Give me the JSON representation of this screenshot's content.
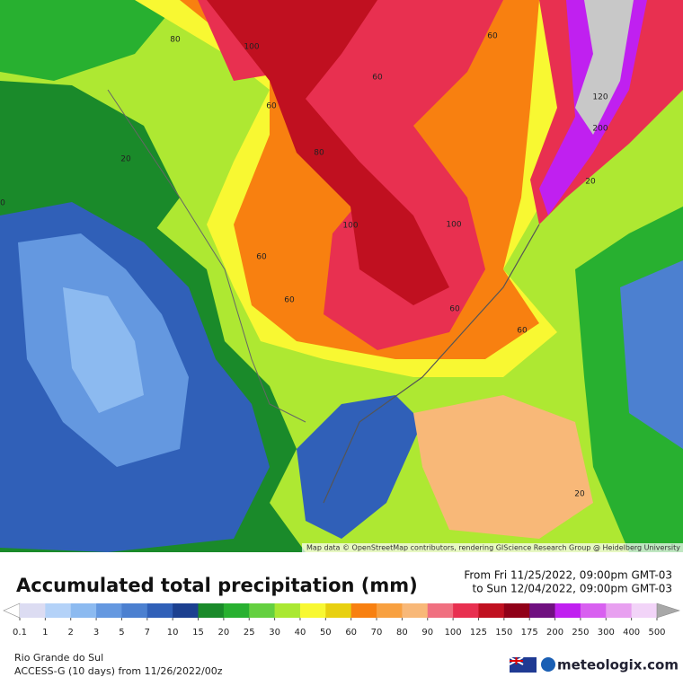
{
  "map": {
    "contour_labels": [
      "80",
      "100",
      "60",
      "80",
      "60",
      "60",
      "120",
      "200",
      "20",
      "20",
      "100",
      "100",
      "60",
      "60",
      "60",
      "60",
      "20",
      "0"
    ],
    "attribution": "Map data © OpenStreetMap contributors, rendering GIScience Research Group @ Heidelberg University"
  },
  "legend": {
    "title": "Accumulated total precipitation (mm)",
    "period_from": "From Fri 11/25/2022, 09:00pm GMT-03",
    "period_to": "to Sun 12/04/2022, 09:00pm GMT-03",
    "levels": [
      0.1,
      1,
      2,
      3,
      5,
      7,
      10,
      15,
      20,
      25,
      30,
      40,
      50,
      60,
      70,
      80,
      90,
      100,
      125,
      150,
      175,
      200,
      250,
      300,
      400,
      500
    ],
    "colors": [
      "#ffffff",
      "#dcdcf2",
      "#b4d2f8",
      "#8cbaf0",
      "#6498e0",
      "#4c80d0",
      "#3060b8",
      "#1c4090",
      "#1a8a2a",
      "#28b030",
      "#64d040",
      "#aae832",
      "#f8f832",
      "#e8d010",
      "#f88010",
      "#f8a040",
      "#f8b878",
      "#f07080",
      "#e83050",
      "#c01020",
      "#900018",
      "#701080",
      "#c020f0",
      "#d860f0",
      "#e8a0f0",
      "#f2d4f8",
      "#a8a8a8"
    ]
  },
  "footer": {
    "region": "Rio Grande do Sul",
    "model": "ACCESS-G (10 days) from 11/26/2022/00z",
    "brand": "meteologix.com"
  }
}
